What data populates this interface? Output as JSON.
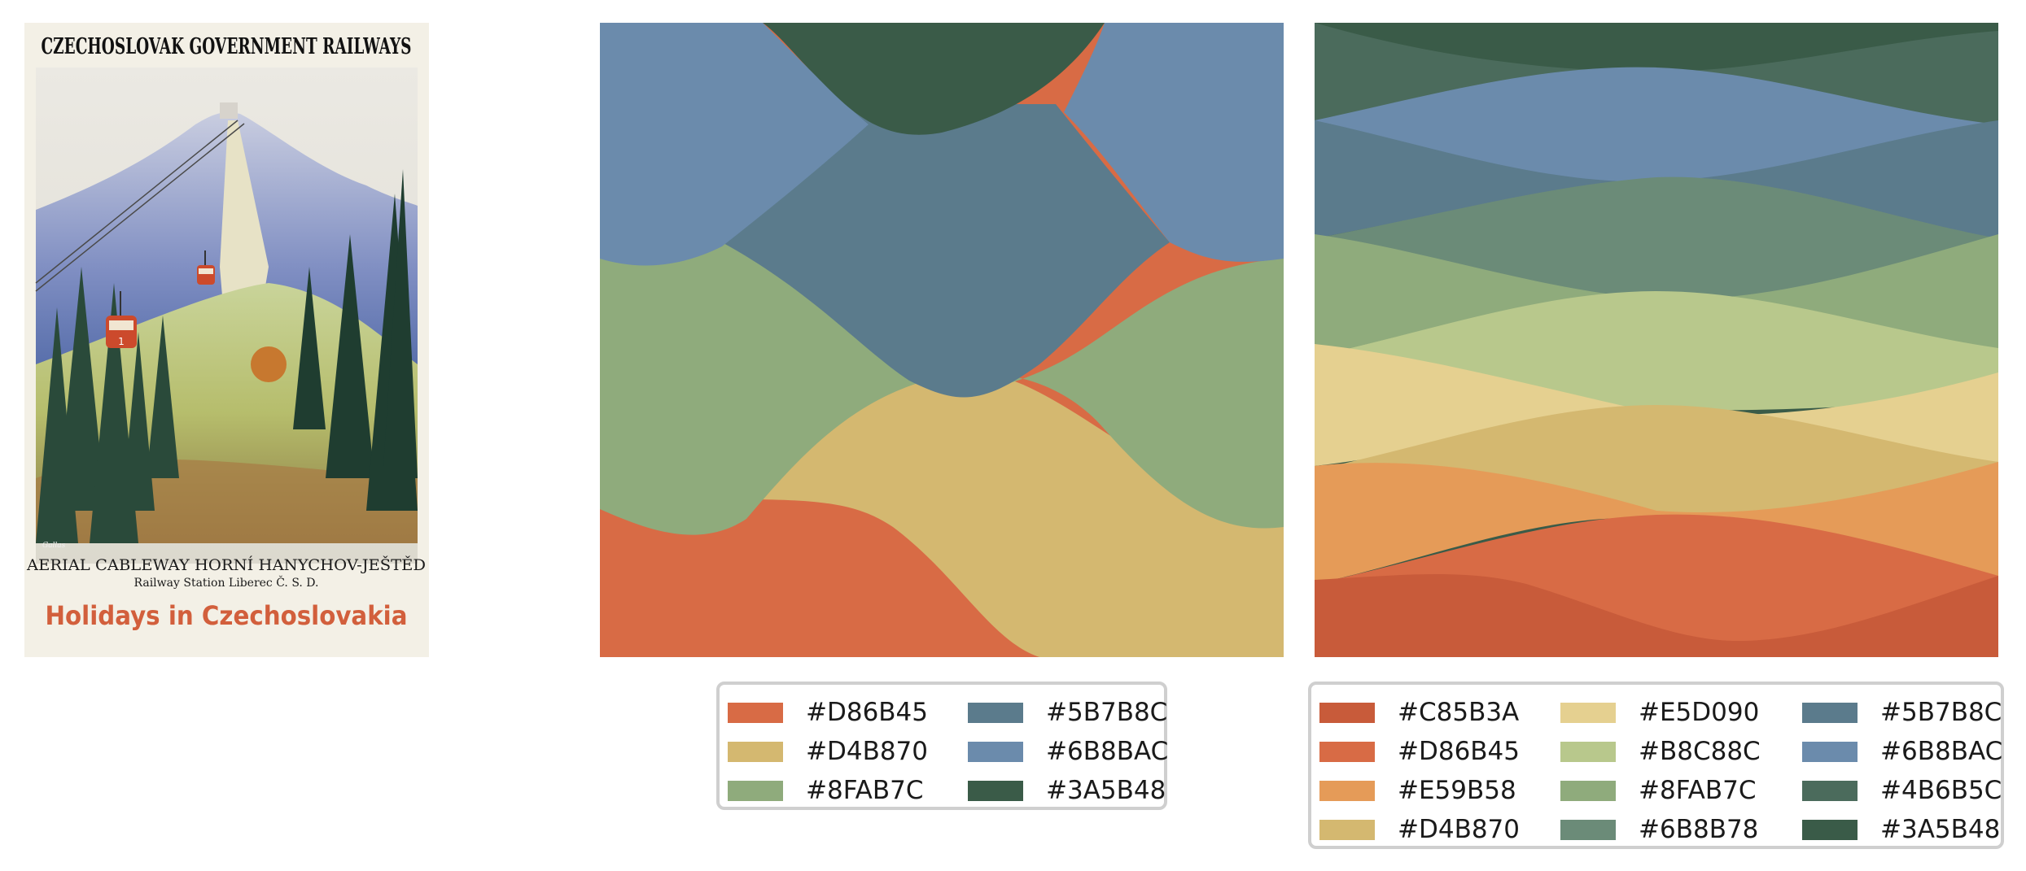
{
  "poster": {
    "header": "CZECHOSLOVAK GOVERNMENT RAILWAYS",
    "line1": "AERIAL CABLEWAY HORNÍ HANYCHOV-JEŠTĚD",
    "line2": "Railway Station Liberec Č. S. D.",
    "slogan": "Holidays in Czechoslovakia",
    "cable_car_number": "1",
    "signature": "Gallas"
  },
  "palette_small": {
    "colors": [
      "#D86B45",
      "#D4B870",
      "#8FAB7C",
      "#5B7B8C",
      "#6B8BAC",
      "#3A5B48"
    ],
    "labels": [
      "#D86B45",
      "#D4B870",
      "#8FAB7C",
      "#5B7B8C",
      "#6B8BAC",
      "#3A5B48"
    ]
  },
  "palette_large": {
    "colors": [
      "#C85B3A",
      "#D86B45",
      "#E59B58",
      "#D4B870",
      "#E5D090",
      "#B8C88C",
      "#8FAB7C",
      "#6B8B78",
      "#5B7B8C",
      "#6B8BAC",
      "#4B6B5C",
      "#3A5B48"
    ],
    "labels": [
      "#C85B3A",
      "#D86B45",
      "#E59B58",
      "#D4B870",
      "#E5D090",
      "#B8C88C",
      "#8FAB7C",
      "#6B8B78",
      "#5B7B8C",
      "#6B8BAC",
      "#4B6B5C",
      "#3A5B48"
    ]
  }
}
